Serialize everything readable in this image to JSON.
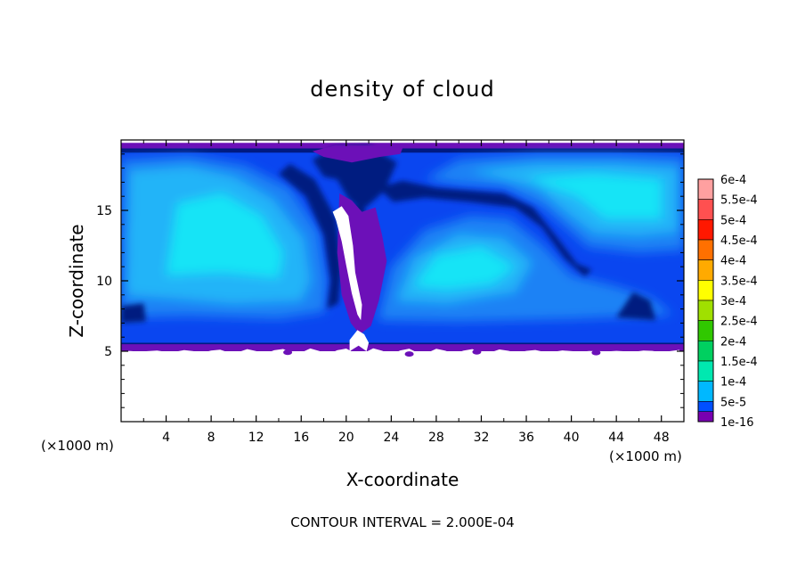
{
  "chart_data": {
    "type": "heatmap",
    "title": "density of cloud",
    "xlabel": "X-coordinate",
    "ylabel": "Z-coordinate",
    "x_unit_left": "(×1000 m)",
    "x_unit_right": "(×1000 m)",
    "footer": "CONTOUR INTERVAL = 2.000E-04",
    "xlim": [
      0,
      50
    ],
    "ylim": [
      0,
      20
    ],
    "x_ticks": [
      4,
      8,
      12,
      16,
      20,
      24,
      28,
      32,
      36,
      40,
      44,
      48
    ],
    "x_tick_labels": [
      "4",
      "8",
      "12",
      "16",
      "20",
      "24",
      "28",
      "32",
      "36",
      "40",
      "44",
      "48"
    ],
    "y_ticks": [
      5,
      10,
      15
    ],
    "y_tick_labels": [
      "5",
      "10",
      "15"
    ],
    "cloud_base_z": 5,
    "cloud_top_z": 19.8,
    "colorbar": {
      "labels": [
        "6e-4",
        "5.5e-4",
        "5e-4",
        "4.5e-4",
        "4e-4",
        "3.5e-4",
        "3e-4",
        "2.5e-4",
        "2e-4",
        "1.5e-4",
        "1e-4",
        "5e-5",
        "1e-16"
      ],
      "colors": [
        "#ffa0a0",
        "#ff5050",
        "#ff1800",
        "#ff7000",
        "#ffaa00",
        "#ffff00",
        "#a0e000",
        "#30c800",
        "#00d060",
        "#00e8b0",
        "#00b8ff",
        "#0050ff",
        "#000090"
      ],
      "bottom_color": "#7800b0"
    },
    "palette": {
      "purple": "#6c10b8",
      "navy": "#001a80",
      "blue": "#0a46f0",
      "mid_blue": "#1e82f5",
      "light_blue": "#20b4f8",
      "cyan": "#14e4f6"
    }
  }
}
